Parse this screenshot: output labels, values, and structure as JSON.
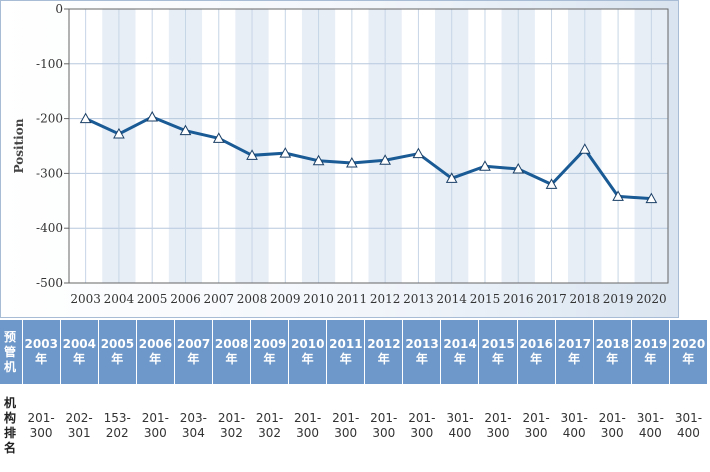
{
  "chart_data": {
    "type": "line",
    "title": "",
    "xlabel": "",
    "ylabel": "Position",
    "ylim": [
      -500,
      0
    ],
    "yticks": [
      "0",
      "-100",
      "-200",
      "-300",
      "-400",
      "-500"
    ],
    "ytick_values": [
      0,
      -100,
      -200,
      -300,
      -400,
      -500
    ],
    "x": [
      "2003",
      "2004",
      "2005",
      "2006",
      "2007",
      "2008",
      "2009",
      "2010",
      "2011",
      "2012",
      "2013",
      "2014",
      "2015",
      "2016",
      "2017",
      "2018",
      "2019",
      "2020"
    ],
    "series": [
      {
        "name": "",
        "values": [
          -200,
          -228,
          -197,
          -222,
          -236,
          -267,
          -263,
          -277,
          -281,
          -276,
          -264,
          -309,
          -287,
          -292,
          -320,
          -256,
          -342,
          -346
        ],
        "color": "#1a5a95",
        "marker": "triangle"
      }
    ],
    "grid": true,
    "legend": "none"
  },
  "table": {
    "header_label": "预\n管\n机",
    "row_label": "机\n构\n排\n名",
    "columns": [
      {
        "year": "2003\n年",
        "range": "201-\n300"
      },
      {
        "year": "2004\n年",
        "range": "202-\n301"
      },
      {
        "year": "2005\n年",
        "range": "153-\n202"
      },
      {
        "year": "2006\n年",
        "range": "201-\n300"
      },
      {
        "year": "2007\n年",
        "range": "203-\n304"
      },
      {
        "year": "2008\n年",
        "range": "201-\n302"
      },
      {
        "year": "2009\n年",
        "range": "201-\n302"
      },
      {
        "year": "2010\n年",
        "range": "201-\n300"
      },
      {
        "year": "2011\n年",
        "range": "201-\n300"
      },
      {
        "year": "2012\n年",
        "range": "201-\n300"
      },
      {
        "year": "2013\n年",
        "range": "201-\n300"
      },
      {
        "year": "2014\n年",
        "range": "301-\n400"
      },
      {
        "year": "2015\n年",
        "range": "201-\n300"
      },
      {
        "year": "2016\n年",
        "range": "201-\n300"
      },
      {
        "year": "2017\n年",
        "range": "301-\n400"
      },
      {
        "year": "2018\n年",
        "range": "201-\n300"
      },
      {
        "year": "2019\n年",
        "range": "301-\n400"
      },
      {
        "year": "2020\n年",
        "range": "301-\n400"
      }
    ]
  }
}
